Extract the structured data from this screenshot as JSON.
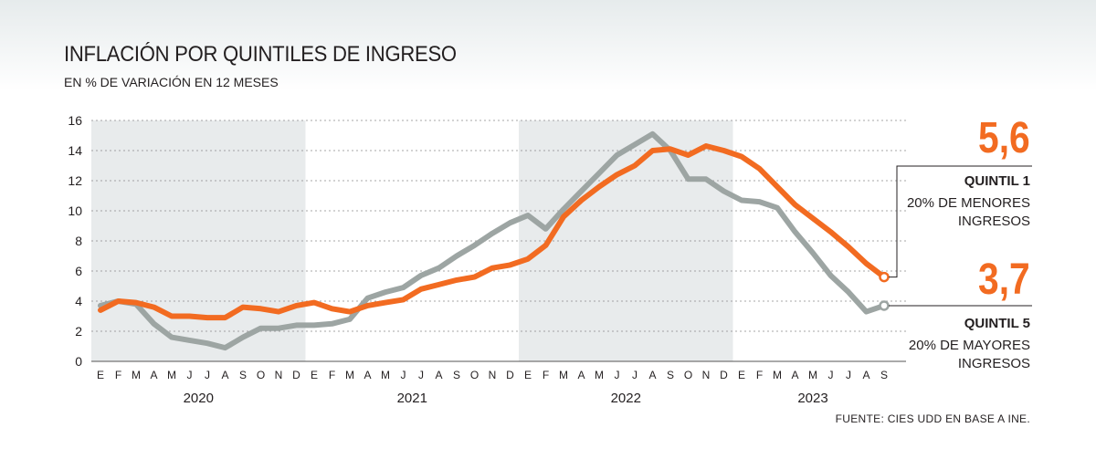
{
  "header": {
    "title": "INFLACIÓN POR QUINTILES DE INGRESO",
    "subtitle": "EN % DE VARIACIÓN EN 12 MESES"
  },
  "source": "FUENTE: CIES UDD EN BASE A INE.",
  "labels": {
    "q1_value": "5,6",
    "q1_title": "QUINTIL 1",
    "q1_desc_1": "20%  DE MENORES",
    "q1_desc_2": "INGRESOS",
    "q5_value": "3,7",
    "q5_title": "QUINTIL 5",
    "q5_desc_1": "20%  DE MAYORES",
    "q5_desc_2": "INGRESOS"
  },
  "colors": {
    "quintil1": "#f26b21",
    "quintil5": "#9da5a3",
    "shade": "#e8ebec"
  },
  "chart_data": {
    "type": "line",
    "title": "INFLACIÓN POR QUINTILES DE INGRESO",
    "subtitle": "EN % DE VARIACIÓN EN 12 MESES",
    "ylim": [
      0,
      16
    ],
    "yticks": [
      0,
      2,
      4,
      6,
      8,
      10,
      12,
      14,
      16
    ],
    "grid": true,
    "month_labels": [
      "E",
      "F",
      "M",
      "A",
      "M",
      "J",
      "J",
      "A",
      "S",
      "O",
      "N",
      "D",
      "E",
      "F",
      "M",
      "A",
      "M",
      "J",
      "J",
      "A",
      "S",
      "O",
      "N",
      "D",
      "E",
      "F",
      "M",
      "A",
      "M",
      "J",
      "J",
      "A",
      "S",
      "O",
      "N",
      "D",
      "E",
      "F",
      "M",
      "A",
      "M",
      "J",
      "J",
      "A",
      "S"
    ],
    "years": [
      {
        "label": "2020",
        "start": 0,
        "end": 11
      },
      {
        "label": "2021",
        "start": 12,
        "end": 23
      },
      {
        "label": "2022",
        "start": 24,
        "end": 35
      },
      {
        "label": "2023",
        "start": 36,
        "end": 44
      }
    ],
    "series": [
      {
        "name": "QUINTIL 1",
        "color": "#f26b21",
        "values": [
          3.4,
          4.0,
          3.9,
          3.6,
          3.0,
          3.0,
          2.9,
          2.9,
          3.6,
          3.5,
          3.3,
          3.7,
          3.9,
          3.5,
          3.3,
          3.7,
          3.9,
          4.1,
          4.8,
          5.1,
          5.4,
          5.6,
          6.2,
          6.4,
          6.8,
          7.7,
          9.6,
          10.7,
          11.6,
          12.4,
          13.0,
          14.0,
          14.1,
          13.7,
          14.3,
          14.0,
          13.6,
          12.8,
          11.6,
          10.4,
          9.5,
          8.6,
          7.6,
          6.5,
          5.6
        ]
      },
      {
        "name": "QUINTIL 5",
        "color": "#9da5a3",
        "values": [
          3.7,
          4.0,
          3.8,
          2.5,
          1.6,
          1.4,
          1.2,
          0.9,
          1.6,
          2.2,
          2.2,
          2.4,
          2.4,
          2.5,
          2.8,
          4.2,
          4.6,
          4.9,
          5.7,
          6.2,
          7.0,
          7.7,
          8.5,
          9.2,
          9.7,
          8.8,
          10.1,
          11.3,
          12.5,
          13.7,
          14.4,
          15.1,
          14.0,
          12.1,
          12.1,
          11.3,
          10.7,
          10.6,
          10.2,
          8.6,
          7.2,
          5.7,
          4.6,
          3.3,
          3.7
        ]
      }
    ]
  }
}
